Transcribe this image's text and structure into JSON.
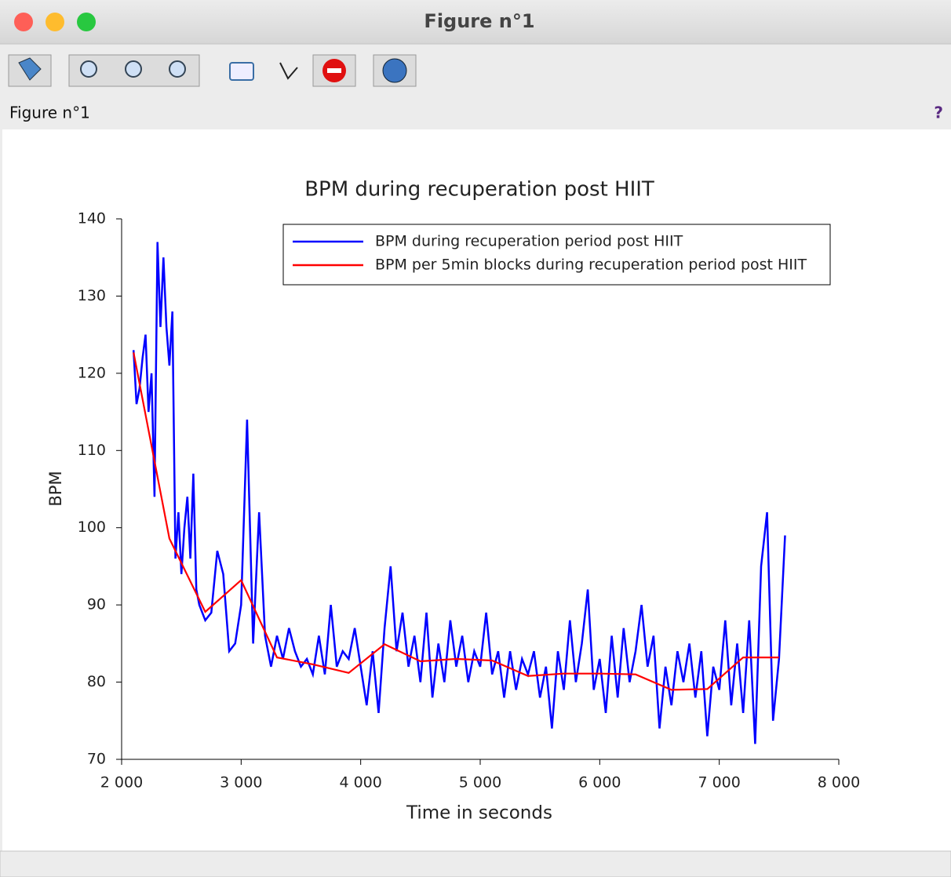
{
  "window": {
    "title": "Figure n°1",
    "figure_label": "Figure n°1",
    "help": "?"
  },
  "chart_data": {
    "type": "line",
    "title": "BPM during recuperation post HIIT",
    "x_label": "Time in seconds",
    "y_label": "BPM",
    "series": [
      {
        "name": "BPM during recuperation period post HIIT",
        "color": "#0000ff",
        "x": [
          2100,
          2125,
          2150,
          2175,
          2200,
          2225,
          2250,
          2275,
          2300,
          2325,
          2350,
          2375,
          2400,
          2425,
          2450,
          2475,
          2500,
          2525,
          2550,
          2575,
          2600,
          2625,
          2650,
          2700,
          2750,
          2800,
          2850,
          2900,
          2950,
          3000,
          3050,
          3100,
          3150,
          3200,
          3250,
          3300,
          3350,
          3400,
          3450,
          3500,
          3550,
          3600,
          3650,
          3700,
          3750,
          3800,
          3850,
          3900,
          3950,
          4000,
          4050,
          4100,
          4150,
          4200,
          4250,
          4300,
          4350,
          4400,
          4450,
          4500,
          4550,
          4600,
          4650,
          4700,
          4750,
          4800,
          4850,
          4900,
          4950,
          5000,
          5050,
          5100,
          5150,
          5200,
          5250,
          5300,
          5350,
          5400,
          5450,
          5500,
          5550,
          5600,
          5650,
          5700,
          5750,
          5800,
          5850,
          5900,
          5950,
          6000,
          6050,
          6100,
          6150,
          6200,
          6250,
          6300,
          6350,
          6400,
          6450,
          6500,
          6550,
          6600,
          6650,
          6700,
          6750,
          6800,
          6850,
          6900,
          6950,
          7000,
          7050,
          7100,
          7150,
          7200,
          7250,
          7300,
          7350,
          7400,
          7450,
          7500,
          7550
        ],
        "values": [
          123,
          116,
          118,
          122,
          125,
          115,
          120,
          104,
          137,
          126,
          135,
          126,
          121,
          128,
          96,
          102,
          94,
          100,
          104,
          96,
          107,
          92,
          90,
          88,
          89,
          97,
          94,
          84,
          85,
          90,
          114,
          85,
          102,
          86,
          82,
          86,
          83,
          87,
          84,
          82,
          83,
          81,
          86,
          81,
          90,
          82,
          84,
          83,
          87,
          82,
          77,
          84,
          76,
          87,
          95,
          84,
          89,
          82,
          86,
          80,
          89,
          78,
          85,
          80,
          88,
          82,
          86,
          80,
          84,
          82,
          89,
          81,
          84,
          78,
          84,
          79,
          83,
          81,
          84,
          78,
          82,
          74,
          84,
          79,
          88,
          80,
          85,
          92,
          79,
          83,
          76,
          86,
          78,
          87,
          80,
          84,
          90,
          82,
          86,
          74,
          82,
          77,
          84,
          80,
          85,
          78,
          84,
          73,
          82,
          79,
          88,
          77,
          85,
          76,
          88,
          72,
          95,
          102,
          75,
          83,
          99
        ]
      },
      {
        "name": "BPM per 5min blocks during recuperation period post HIIT",
        "color": "#ff0000",
        "x": [
          2100,
          2400,
          2700,
          3000,
          3300,
          3600,
          3900,
          4200,
          4500,
          4800,
          5100,
          5400,
          5700,
          6000,
          6300,
          6600,
          6900,
          7200,
          7500
        ],
        "values": [
          122.7,
          98.6,
          89.1,
          93.2,
          83.2,
          82.3,
          81.2,
          84.9,
          82.7,
          83,
          82.8,
          80.8,
          81.1,
          81.1,
          81,
          79,
          79.1,
          83.2,
          83.2
        ]
      }
    ],
    "xlim": [
      2000,
      8000
    ],
    "xticks": [
      {
        "value": 2000,
        "label": "2 000"
      },
      {
        "value": 3000,
        "label": "3 000"
      },
      {
        "value": 4000,
        "label": "4 000"
      },
      {
        "value": 5000,
        "label": "5 000"
      },
      {
        "value": 6000,
        "label": "6 000"
      },
      {
        "value": 7000,
        "label": "7 000"
      },
      {
        "value": 8000,
        "label": "8 000"
      }
    ],
    "ylim": [
      70,
      140
    ],
    "yticks": [
      70,
      80,
      90,
      100,
      110,
      120,
      130,
      140
    ],
    "legend": "top-right",
    "grid": false
  }
}
